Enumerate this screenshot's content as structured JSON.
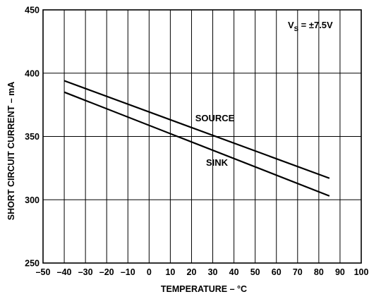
{
  "chart_data": {
    "type": "line",
    "xlabel": "TEMPERATURE – °C",
    "ylabel": "SHORT CIRCUIT CURRENT – mA",
    "xlim": [
      -50,
      100
    ],
    "ylim": [
      250,
      450
    ],
    "xticks": [
      -50,
      -40,
      -30,
      -20,
      -10,
      0,
      10,
      20,
      30,
      40,
      50,
      60,
      70,
      80,
      90,
      100
    ],
    "yticks": [
      250,
      300,
      350,
      400,
      450
    ],
    "xtick_labels": [
      "–50",
      "–40",
      "–30",
      "–20",
      "–10",
      "0",
      "10",
      "20",
      "30",
      "40",
      "50",
      "60",
      "70",
      "80",
      "90",
      "100"
    ],
    "ytick_labels": [
      "250",
      "300",
      "350",
      "400",
      "450"
    ],
    "grid": true,
    "legend": "none",
    "annotation": {
      "symbol": "V",
      "subscript": "S",
      "text": " = ±7.5V",
      "placement": "top-right"
    },
    "series": [
      {
        "name": "SOURCE",
        "x": [
          -40,
          85
        ],
        "values": [
          394,
          317
        ],
        "label_at": [
          31,
          362
        ]
      },
      {
        "name": "SINK",
        "x": [
          -40,
          85
        ],
        "values": [
          385,
          303
        ],
        "label_at": [
          32,
          327
        ]
      }
    ]
  }
}
